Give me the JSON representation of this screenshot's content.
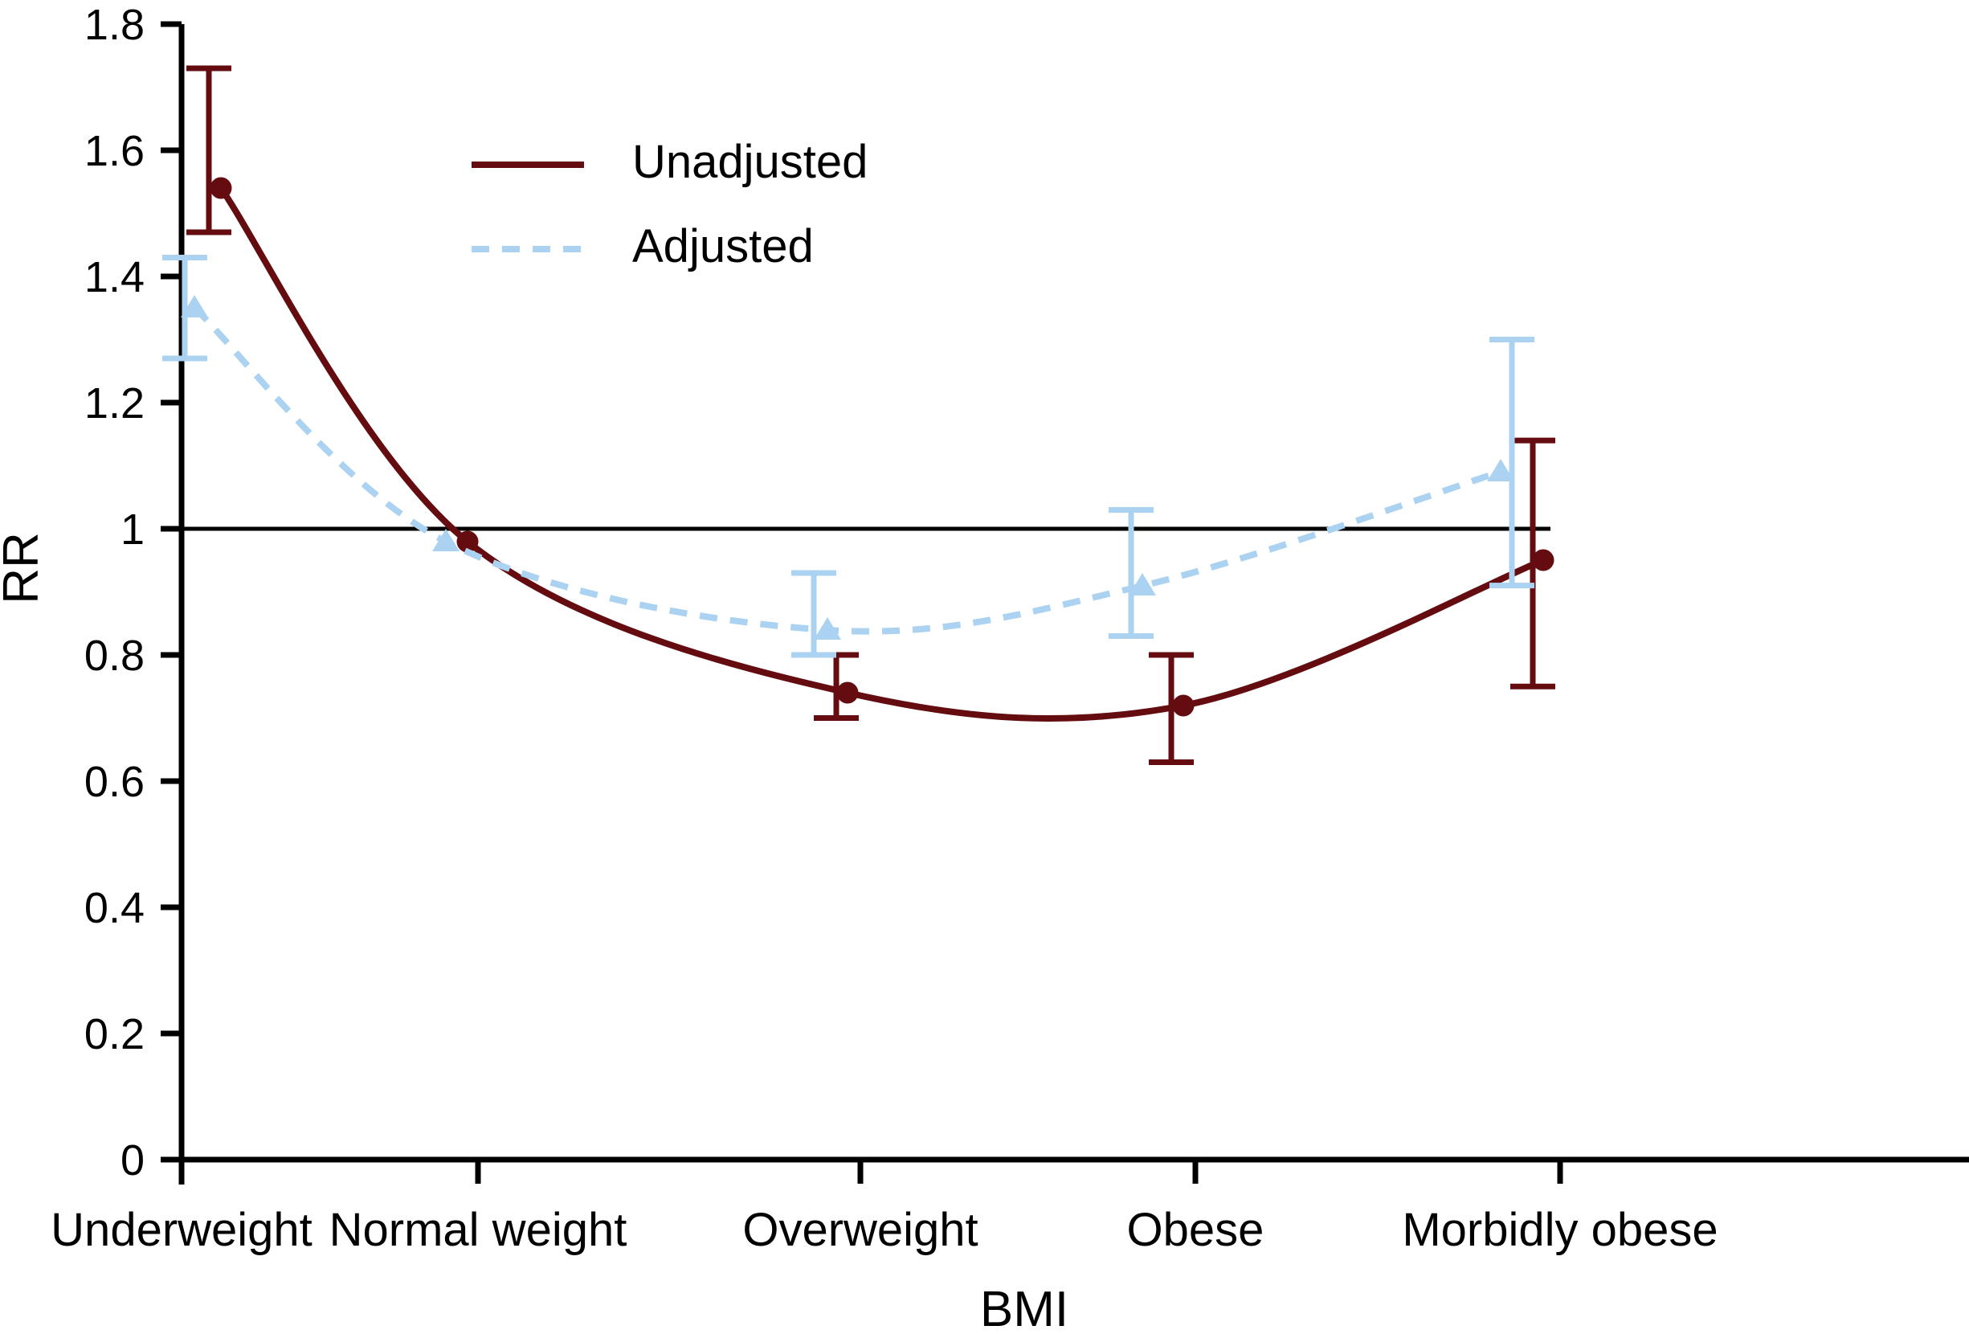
{
  "chart_data": {
    "type": "line",
    "title": "",
    "xlabel": "BMI",
    "ylabel": "RR",
    "categories": [
      "Underweight",
      "Normal weight",
      "Overweight",
      "Obese",
      "Morbidly obese"
    ],
    "yticks": [
      0,
      0.2,
      0.4,
      0.6,
      0.8,
      1,
      1.2,
      1.4,
      1.6,
      1.8
    ],
    "ylim": [
      0,
      1.8
    ],
    "reference_line": 1,
    "grid": false,
    "legend_position": "upper-left-inside",
    "colors": {
      "unadjusted": "#640c10",
      "adjusted": "#abd3f1",
      "axis": "#000000"
    },
    "series": [
      {
        "name": "Unadjusted",
        "color": "#640c10",
        "line_style": "solid",
        "marker": "circle",
        "values": [
          1.54,
          0.98,
          0.74,
          0.72,
          0.95
        ],
        "ci_low": [
          1.47,
          null,
          0.7,
          0.63,
          0.75
        ],
        "ci_high": [
          1.73,
          null,
          0.8,
          0.8,
          1.14
        ]
      },
      {
        "name": "Adjusted",
        "color": "#abd3f1",
        "line_style": "dashed",
        "marker": "triangle",
        "values": [
          1.35,
          0.98,
          0.84,
          0.91,
          1.09
        ],
        "ci_low": [
          1.27,
          null,
          0.8,
          0.83,
          0.91
        ],
        "ci_high": [
          1.43,
          null,
          0.93,
          1.03,
          1.3
        ]
      }
    ]
  }
}
